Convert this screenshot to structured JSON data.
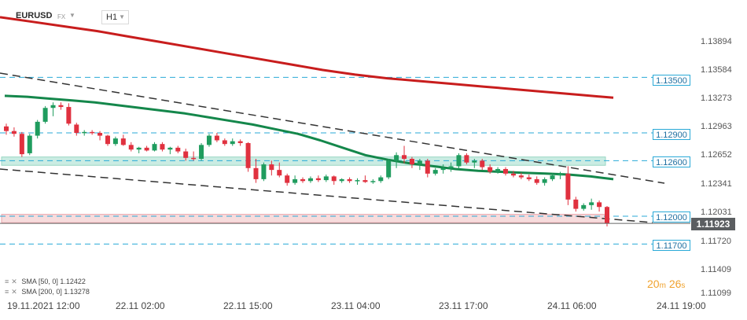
{
  "header": {
    "symbol": "EURUSD",
    "instrument_type": "FX",
    "timeframe": "H1"
  },
  "y_axis_ticks": [
    "1.13894",
    "1.13584",
    "1.13273",
    "1.12963",
    "1.12652",
    "1.12341",
    "1.12031",
    "1.11720",
    "1.11409",
    "1.11099"
  ],
  "level_labels": [
    "1.13500",
    "1.12900",
    "1.12600",
    "1.12000",
    "1.11700"
  ],
  "current_price": "1.11923",
  "x_axis_ticks": [
    "19.11.2021  12:00",
    "22.11  02:00",
    "22.11  15:00",
    "23.11  04:00",
    "23.11  17:00",
    "24.11  06:00",
    "24.11  19:00"
  ],
  "indicators": [
    {
      "name": "SMA",
      "params": "[50, 0]",
      "value": "1.12422"
    },
    {
      "name": "SMA",
      "params": "[200, 0]",
      "value": "1.13278"
    }
  ],
  "candle_timer": {
    "minutes": "20",
    "min_unit": "m",
    "seconds": "26",
    "sec_unit": "s"
  },
  "colors": {
    "bull": "#1f9c5e",
    "bear": "#e0313f",
    "sma50": "#14874b",
    "sma200": "#c81d1d",
    "level_line": "#29a9d7",
    "zone_green": "#c5ebe0",
    "zone_red": "#f7d9da",
    "trend_line": "#333333"
  },
  "chart_data": {
    "type": "candlestick",
    "symbol": "EURUSD",
    "timeframe": "H1",
    "x_ticks": [
      "19.11.2021 12:00",
      "22.11 02:00",
      "22.11 15:00",
      "23.11 04:00",
      "23.11 17:00",
      "24.11 06:00",
      "24.11 19:00"
    ],
    "y_ticks": [
      1.13894,
      1.13584,
      1.13273,
      1.12963,
      1.12652,
      1.12341,
      1.12031,
      1.1172,
      1.11409,
      1.11099
    ],
    "ylim": [
      1.1098,
      1.1418
    ],
    "horizontal_levels": [
      1.135,
      1.129,
      1.126,
      1.12,
      1.117
    ],
    "zones": [
      {
        "low": 1.1255,
        "high": 1.1264,
        "color": "green"
      },
      {
        "low": 1.1193,
        "high": 1.1202,
        "color": "red"
      }
    ],
    "current_price": 1.11923,
    "sma50": [
      1.133,
      1.1329,
      1.1327,
      1.1325,
      1.1323,
      1.132,
      1.1317,
      1.1314,
      1.1311,
      1.1307,
      1.1303,
      1.1299,
      1.1294,
      1.1289,
      1.1282,
      1.1274,
      1.1266,
      1.1261,
      1.1257,
      1.1254,
      1.1251,
      1.1249,
      1.1248,
      1.1247,
      1.1246,
      1.1245,
      1.1243,
      1.124
    ],
    "sma200": [
      1.1415,
      1.141,
      1.1405,
      1.14,
      1.1394,
      1.1388,
      1.1382,
      1.1376,
      1.137,
      1.1364,
      1.1358,
      1.1353,
      1.1349,
      1.1346,
      1.1343,
      1.134,
      1.1337,
      1.1334,
      1.1331,
      1.1328
    ],
    "candles": [
      [
        1.1297,
        1.13,
        1.1288,
        1.1292
      ],
      [
        1.1292,
        1.1296,
        1.1286,
        1.1289
      ],
      [
        1.1289,
        1.1291,
        1.1264,
        1.1267
      ],
      [
        1.1268,
        1.1289,
        1.1266,
        1.1287
      ],
      [
        1.1287,
        1.1304,
        1.1284,
        1.1302
      ],
      [
        1.1302,
        1.1319,
        1.13,
        1.1317
      ],
      [
        1.1317,
        1.1323,
        1.1308,
        1.132
      ],
      [
        1.132,
        1.1323,
        1.1315,
        1.1318
      ],
      [
        1.1318,
        1.1322,
        1.1298,
        1.13
      ],
      [
        1.1299,
        1.1301,
        1.1287,
        1.129
      ],
      [
        1.129,
        1.1293,
        1.1287,
        1.1291
      ],
      [
        1.1291,
        1.1293,
        1.1288,
        1.129
      ],
      [
        1.129,
        1.1292,
        1.1282,
        1.1287
      ],
      [
        1.1287,
        1.1288,
        1.1276,
        1.1278
      ],
      [
        1.1278,
        1.1286,
        1.1276,
        1.1284
      ],
      [
        1.1284,
        1.1288,
        1.1276,
        1.1277
      ],
      [
        1.1277,
        1.128,
        1.127,
        1.1272
      ],
      [
        1.1272,
        1.1275,
        1.1268,
        1.1274
      ],
      [
        1.1274,
        1.1276,
        1.127,
        1.1271
      ],
      [
        1.1271,
        1.128,
        1.127,
        1.1278
      ],
      [
        1.1278,
        1.128,
        1.127,
        1.1272
      ],
      [
        1.1272,
        1.1275,
        1.1267,
        1.1274
      ],
      [
        1.1274,
        1.1276,
        1.1268,
        1.127
      ],
      [
        1.127,
        1.1273,
        1.126,
        1.1263
      ],
      [
        1.1263,
        1.127,
        1.126,
        1.1262
      ],
      [
        1.1262,
        1.1279,
        1.126,
        1.1277
      ],
      [
        1.1277,
        1.1289,
        1.1275,
        1.1287
      ],
      [
        1.1287,
        1.129,
        1.128,
        1.1282
      ],
      [
        1.1282,
        1.1284,
        1.1276,
        1.1278
      ],
      [
        1.1278,
        1.1284,
        1.1276,
        1.1281
      ],
      [
        1.1281,
        1.1283,
        1.1276,
        1.1279
      ],
      [
        1.1279,
        1.128,
        1.1248,
        1.1252
      ],
      [
        1.1252,
        1.1262,
        1.1236,
        1.124
      ],
      [
        1.124,
        1.1258,
        1.1238,
        1.1256
      ],
      [
        1.1256,
        1.126,
        1.1244,
        1.125
      ],
      [
        1.125,
        1.1258,
        1.1242,
        1.1244
      ],
      [
        1.1244,
        1.1246,
        1.1233,
        1.1236
      ],
      [
        1.1236,
        1.1244,
        1.1234,
        1.124
      ],
      [
        1.124,
        1.1242,
        1.1236,
        1.1238
      ],
      [
        1.1238,
        1.1243,
        1.1236,
        1.1241
      ],
      [
        1.1241,
        1.1244,
        1.1237,
        1.1239
      ],
      [
        1.1239,
        1.1245,
        1.1237,
        1.1243
      ],
      [
        1.1243,
        1.1244,
        1.1234,
        1.1238
      ],
      [
        1.1238,
        1.1241,
        1.1236,
        1.124
      ],
      [
        1.124,
        1.1242,
        1.1236,
        1.1238
      ],
      [
        1.1238,
        1.1241,
        1.1234,
        1.1239
      ],
      [
        1.1239,
        1.1244,
        1.1236,
        1.1237
      ],
      [
        1.1237,
        1.124,
        1.1235,
        1.1238
      ],
      [
        1.1238,
        1.1244,
        1.1236,
        1.1242
      ],
      [
        1.1242,
        1.1262,
        1.124,
        1.126
      ],
      [
        1.126,
        1.1269,
        1.1252,
        1.1266
      ],
      [
        1.1266,
        1.1276,
        1.1257,
        1.1262
      ],
      [
        1.1262,
        1.1264,
        1.1252,
        1.1256
      ],
      [
        1.1256,
        1.1262,
        1.125,
        1.126
      ],
      [
        1.126,
        1.1262,
        1.1242,
        1.1246
      ],
      [
        1.1246,
        1.1252,
        1.1244,
        1.125
      ],
      [
        1.125,
        1.1256,
        1.1246,
        1.1252
      ],
      [
        1.1252,
        1.1258,
        1.1248,
        1.1254
      ],
      [
        1.1254,
        1.1268,
        1.1251,
        1.1266
      ],
      [
        1.1266,
        1.1268,
        1.1256,
        1.1258
      ],
      [
        1.1258,
        1.1262,
        1.1252,
        1.126
      ],
      [
        1.126,
        1.1262,
        1.125,
        1.1253
      ],
      [
        1.1253,
        1.1256,
        1.1246,
        1.1248
      ],
      [
        1.1248,
        1.1253,
        1.1246,
        1.1251
      ],
      [
        1.1251,
        1.1253,
        1.1244,
        1.1246
      ],
      [
        1.1246,
        1.1249,
        1.1242,
        1.1244
      ],
      [
        1.1244,
        1.1247,
        1.124,
        1.1242
      ],
      [
        1.1242,
        1.1245,
        1.1238,
        1.124
      ],
      [
        1.124,
        1.1243,
        1.1234,
        1.1236
      ],
      [
        1.1236,
        1.1242,
        1.1233,
        1.124
      ],
      [
        1.124,
        1.1246,
        1.1238,
        1.1244
      ],
      [
        1.1244,
        1.1248,
        1.124,
        1.1246
      ],
      [
        1.1246,
        1.1254,
        1.1212,
        1.1218
      ],
      [
        1.1218,
        1.1221,
        1.1205,
        1.1208
      ],
      [
        1.1208,
        1.1214,
        1.1206,
        1.1212
      ],
      [
        1.1212,
        1.1219,
        1.1207,
        1.1215
      ],
      [
        1.1215,
        1.1217,
        1.1205,
        1.121
      ],
      [
        1.121,
        1.1211,
        1.1189,
        1.1192
      ]
    ]
  }
}
